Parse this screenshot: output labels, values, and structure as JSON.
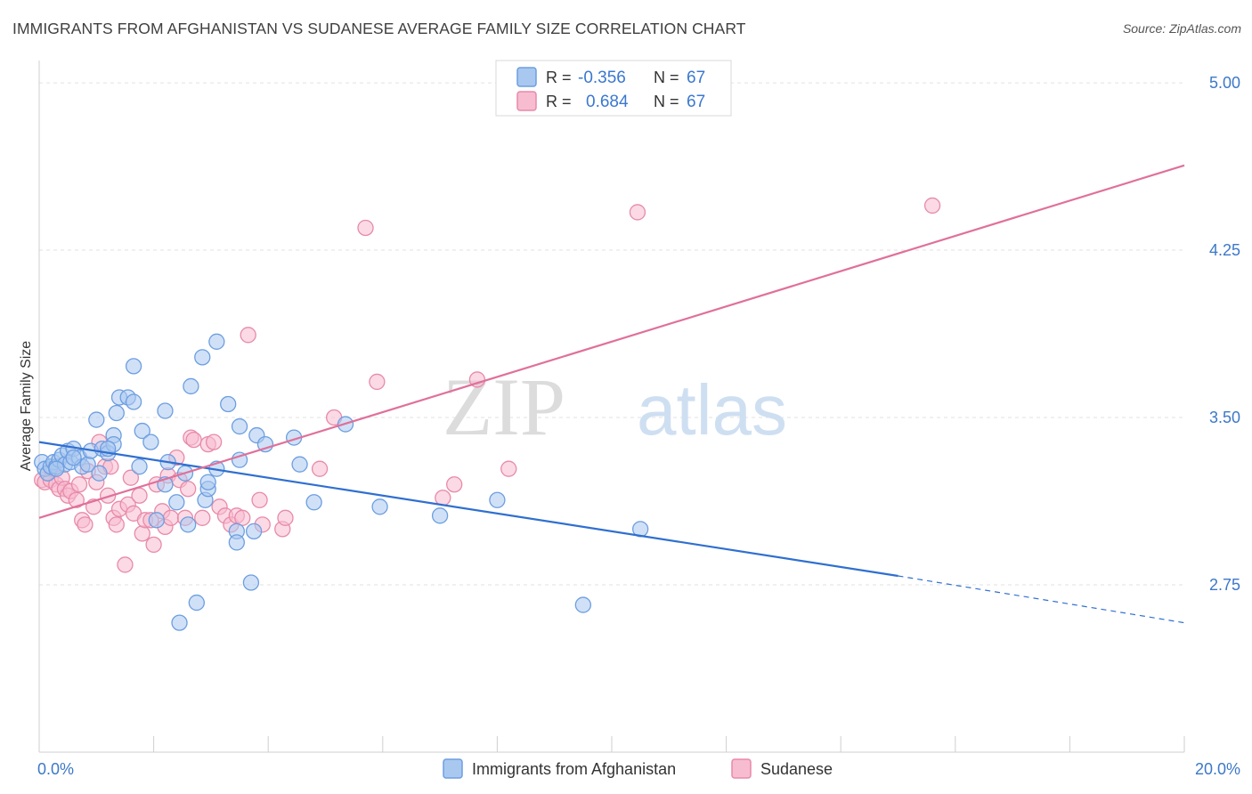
{
  "title": "IMMIGRANTS FROM AFGHANISTAN VS SUDANESE AVERAGE FAMILY SIZE CORRELATION CHART",
  "source": "Source: ZipAtlas.com",
  "watermark": {
    "left": "ZIP",
    "right": "atlas"
  },
  "legend": {
    "rows": [
      {
        "r_label": "R =",
        "r_value": "-0.356",
        "n_label": "N =",
        "n_value": "67"
      },
      {
        "r_label": "R =",
        "r_value": "0.684",
        "n_label": "N =",
        "n_value": "67"
      }
    ]
  },
  "chart_data": {
    "type": "scatter",
    "title": "IMMIGRANTS FROM AFGHANISTAN VS SUDANESE AVERAGE FAMILY SIZE CORRELATION CHART",
    "xlabel": "",
    "ylabel": "Average Family Size",
    "xlim": [
      0,
      20
    ],
    "ylim": [
      2.0,
      5.1
    ],
    "x_ticks_labels": [
      "0.0%",
      "20.0%"
    ],
    "y_ticks": [
      2.75,
      3.5,
      4.25,
      5.0
    ],
    "y_tick_labels": [
      "2.75",
      "3.50",
      "4.25",
      "5.00"
    ],
    "grid": "horizontal dashed",
    "legend_position": "top-center",
    "colors": {
      "blue_fill": "#a9c8f0",
      "blue_stroke": "#6d9ee0",
      "blue_line": "#2f6fd0",
      "pink_fill": "#f7bcd0",
      "pink_stroke": "#e88aa8",
      "pink_line": "#e0709a"
    },
    "series": [
      {
        "name": "Immigrants from Afghanistan",
        "trend": {
          "x0": 0,
          "y0": 3.39,
          "x1": 15.0,
          "y1": 2.79,
          "dash_to_x": 20,
          "dash_to_y": 2.58
        },
        "points": [
          [
            0.05,
            3.3
          ],
          [
            0.1,
            3.27
          ],
          [
            0.15,
            3.25
          ],
          [
            0.2,
            3.28
          ],
          [
            0.25,
            3.3
          ],
          [
            0.3,
            3.28
          ],
          [
            0.35,
            3.31
          ],
          [
            0.4,
            3.33
          ],
          [
            0.45,
            3.29
          ],
          [
            0.5,
            3.35
          ],
          [
            0.55,
            3.3
          ],
          [
            0.6,
            3.36
          ],
          [
            0.7,
            3.32
          ],
          [
            0.75,
            3.28
          ],
          [
            0.85,
            3.29
          ],
          [
            0.9,
            3.35
          ],
          [
            1.0,
            3.49
          ],
          [
            1.05,
            3.25
          ],
          [
            1.1,
            3.36
          ],
          [
            1.2,
            3.34
          ],
          [
            1.3,
            3.42
          ],
          [
            1.3,
            3.38
          ],
          [
            1.35,
            3.52
          ],
          [
            1.4,
            3.59
          ],
          [
            1.55,
            3.59
          ],
          [
            1.65,
            3.57
          ],
          [
            1.65,
            3.73
          ],
          [
            1.75,
            3.28
          ],
          [
            1.8,
            3.44
          ],
          [
            1.95,
            3.39
          ],
          [
            2.05,
            3.04
          ],
          [
            2.2,
            3.2
          ],
          [
            2.2,
            3.53
          ],
          [
            2.25,
            3.3
          ],
          [
            2.4,
            3.12
          ],
          [
            2.45,
            2.58
          ],
          [
            2.55,
            3.25
          ],
          [
            2.6,
            3.02
          ],
          [
            2.65,
            3.64
          ],
          [
            2.75,
            2.67
          ],
          [
            2.85,
            3.77
          ],
          [
            2.9,
            3.13
          ],
          [
            2.95,
            3.18
          ],
          [
            2.95,
            3.21
          ],
          [
            3.1,
            3.84
          ],
          [
            3.1,
            3.27
          ],
          [
            3.3,
            3.56
          ],
          [
            3.45,
            2.99
          ],
          [
            3.45,
            2.94
          ],
          [
            3.5,
            3.46
          ],
          [
            3.5,
            3.31
          ],
          [
            3.7,
            2.76
          ],
          [
            3.75,
            2.99
          ],
          [
            3.8,
            3.42
          ],
          [
            3.95,
            3.38
          ],
          [
            4.45,
            3.41
          ],
          [
            4.55,
            3.29
          ],
          [
            4.8,
            3.12
          ],
          [
            5.35,
            3.47
          ],
          [
            5.95,
            3.1
          ],
          [
            7.0,
            3.06
          ],
          [
            8.0,
            3.13
          ],
          [
            9.5,
            2.66
          ],
          [
            10.5,
            3.0
          ],
          [
            0.3,
            3.27
          ],
          [
            0.6,
            3.32
          ],
          [
            1.2,
            3.36
          ]
        ]
      },
      {
        "name": "Sudanese",
        "trend": {
          "x0": 0,
          "y0": 3.05,
          "x1": 20,
          "y1": 4.63
        },
        "points": [
          [
            0.05,
            3.22
          ],
          [
            0.1,
            3.21
          ],
          [
            0.15,
            3.25
          ],
          [
            0.2,
            3.22
          ],
          [
            0.25,
            3.27
          ],
          [
            0.3,
            3.2
          ],
          [
            0.35,
            3.18
          ],
          [
            0.4,
            3.23
          ],
          [
            0.45,
            3.18
          ],
          [
            0.5,
            3.15
          ],
          [
            0.55,
            3.17
          ],
          [
            0.65,
            3.13
          ],
          [
            0.7,
            3.2
          ],
          [
            0.75,
            3.04
          ],
          [
            0.8,
            3.02
          ],
          [
            0.85,
            3.26
          ],
          [
            0.95,
            3.1
          ],
          [
            1.0,
            3.21
          ],
          [
            1.05,
            3.39
          ],
          [
            1.15,
            3.28
          ],
          [
            1.2,
            3.15
          ],
          [
            1.25,
            3.28
          ],
          [
            1.3,
            3.05
          ],
          [
            1.35,
            3.02
          ],
          [
            1.4,
            3.09
          ],
          [
            1.5,
            2.84
          ],
          [
            1.55,
            3.11
          ],
          [
            1.6,
            3.23
          ],
          [
            1.65,
            3.07
          ],
          [
            1.75,
            3.15
          ],
          [
            1.8,
            2.98
          ],
          [
            1.85,
            3.04
          ],
          [
            1.95,
            3.04
          ],
          [
            2.0,
            2.93
          ],
          [
            2.05,
            3.2
          ],
          [
            2.15,
            3.08
          ],
          [
            2.2,
            3.01
          ],
          [
            2.25,
            3.24
          ],
          [
            2.3,
            3.05
          ],
          [
            2.4,
            3.32
          ],
          [
            2.45,
            3.22
          ],
          [
            2.55,
            3.05
          ],
          [
            2.6,
            3.18
          ],
          [
            2.65,
            3.41
          ],
          [
            2.7,
            3.4
          ],
          [
            2.85,
            3.05
          ],
          [
            2.95,
            3.38
          ],
          [
            3.05,
            3.39
          ],
          [
            3.15,
            3.1
          ],
          [
            3.25,
            3.06
          ],
          [
            3.35,
            3.02
          ],
          [
            3.45,
            3.06
          ],
          [
            3.55,
            3.05
          ],
          [
            3.65,
            3.87
          ],
          [
            3.85,
            3.13
          ],
          [
            3.9,
            3.02
          ],
          [
            4.25,
            3.0
          ],
          [
            4.3,
            3.05
          ],
          [
            4.9,
            3.27
          ],
          [
            5.15,
            3.5
          ],
          [
            5.7,
            4.35
          ],
          [
            5.9,
            3.66
          ],
          [
            7.05,
            3.14
          ],
          [
            7.25,
            3.2
          ],
          [
            7.65,
            3.67
          ],
          [
            8.2,
            3.27
          ],
          [
            10.45,
            4.42
          ]
        ],
        "extra_points": [
          [
            15.6,
            4.45
          ]
        ]
      }
    ]
  }
}
